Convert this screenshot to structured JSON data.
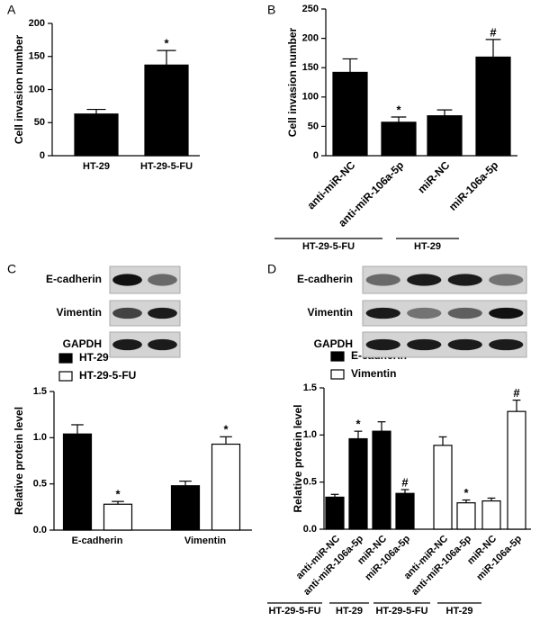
{
  "chart_data": [
    {
      "type": "bar",
      "panel": "A",
      "ylabel": "Cell invasion number",
      "categories": [
        "HT-29",
        "HT-29-5-FU"
      ],
      "values": [
        63,
        137
      ],
      "errors": [
        7,
        22
      ],
      "color": "#000000",
      "ylim": [
        0,
        200
      ],
      "yticks": [
        0,
        50,
        100,
        150,
        200
      ],
      "annotations": [
        {
          "category": 1,
          "text": "*"
        }
      ]
    },
    {
      "type": "bar",
      "panel": "B",
      "ylabel": "Cell invasion number",
      "categories": [
        "anti-miR-NC",
        "anti-miR-106a-5p",
        "miR-NC",
        "miR-106a-5p"
      ],
      "values": [
        142,
        57,
        68,
        168
      ],
      "errors": [
        23,
        9,
        10,
        30
      ],
      "color": "#000000",
      "ylim": [
        0,
        250
      ],
      "yticks": [
        0,
        50,
        100,
        150,
        200,
        250
      ],
      "annotations": [
        {
          "category": 1,
          "text": "*"
        },
        {
          "category": 3,
          "text": "#"
        }
      ],
      "groups": [
        "HT-29-5-FU",
        "HT-29"
      ]
    },
    {
      "type": "bar",
      "panel": "C",
      "ylabel": "Relative protein level",
      "blot_labels": [
        "E-cadherin",
        "Vimentin",
        "GAPDH"
      ],
      "categories": [
        "E-cadherin",
        "Vimentin"
      ],
      "series": [
        {
          "name": "HT-29",
          "color": "#000000",
          "values": [
            1.04,
            0.48
          ],
          "errors": [
            0.1,
            0.05
          ]
        },
        {
          "name": "HT-29-5-FU",
          "color": "#ffffff",
          "values": [
            0.28,
            0.93
          ],
          "errors": [
            0.03,
            0.08
          ]
        }
      ],
      "ylim": [
        0,
        1.5
      ],
      "yticks": [
        {
          "value": 0,
          "label": "0.0"
        },
        0.5,
        {
          "value": 1,
          "label": "1.0"
        },
        1.5
      ],
      "annotations": [
        {
          "category": 0,
          "series": 1,
          "text": "*"
        },
        {
          "category": 1,
          "series": 1,
          "text": "*"
        }
      ]
    },
    {
      "type": "bar",
      "panel": "D",
      "ylabel": "Relative protein level",
      "blot_labels": [
        "E-cadherin",
        "Vimentin",
        "GAPDH"
      ],
      "categories": [
        "anti-miR-NC",
        "anti-miR-106a-5p",
        "miR-NC",
        "miR-106a-5p",
        "anti-miR-NC",
        "anti-miR-106a-5p",
        "miR-NC",
        "miR-106a-5p"
      ],
      "series": [
        {
          "name": "E-cadherin",
          "color": "#000000",
          "values": [
            0.34,
            0.96,
            1.04,
            0.38,
            null,
            null,
            null,
            null
          ],
          "errors": [
            0.03,
            0.08,
            0.1,
            0.04,
            null,
            null,
            null,
            null
          ]
        },
        {
          "name": "Vimentin",
          "color": "#ffffff",
          "values": [
            null,
            null,
            null,
            null,
            0.89,
            0.28,
            0.3,
            1.25
          ],
          "errors": [
            null,
            null,
            null,
            null,
            0.09,
            0.03,
            0.03,
            0.12
          ]
        }
      ],
      "ylim": [
        0,
        1.5
      ],
      "yticks": [
        {
          "value": 0,
          "label": "0.0"
        },
        0.5,
        {
          "value": 1,
          "label": "1.0"
        },
        1.5
      ],
      "annotations": [
        {
          "category": 1,
          "series": 0,
          "text": "*"
        },
        {
          "category": 3,
          "series": 0,
          "text": "#"
        },
        {
          "category": 5,
          "series": 1,
          "text": "*"
        },
        {
          "category": 7,
          "series": 1,
          "text": "#"
        }
      ],
      "groups": [
        "HT-29-5-FU",
        "HT-29",
        "HT-29-5-FU",
        "HT-29"
      ]
    }
  ]
}
